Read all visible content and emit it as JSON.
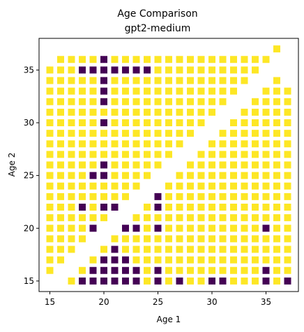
{
  "chart_data": {
    "type": "scatter",
    "title": "Age Comparison",
    "subtitle": "gpt2-medium",
    "xlabel": "Age 1",
    "ylabel": "Age 2",
    "xlim": [
      14.0,
      38.0
    ],
    "ylim": [
      14.0,
      38.0
    ],
    "x_ticks": [
      15,
      20,
      25,
      30,
      35
    ],
    "y_ticks": [
      15,
      20,
      25,
      30,
      35
    ],
    "grid": false,
    "legend": "none",
    "marker": "square",
    "colors": {
      "yes": "#fde725",
      "no": "#440154"
    },
    "grid_range": {
      "min": 15,
      "max": 37
    },
    "missing_points": [
      [
        15,
        15
      ],
      [
        16,
        16
      ],
      [
        17,
        17
      ],
      [
        18,
        18
      ],
      [
        19,
        19
      ],
      [
        20,
        20
      ],
      [
        21,
        21
      ],
      [
        22,
        22
      ],
      [
        23,
        23
      ],
      [
        24,
        24
      ],
      [
        25,
        25
      ],
      [
        26,
        26
      ],
      [
        27,
        27
      ],
      [
        28,
        28
      ],
      [
        29,
        29
      ],
      [
        30,
        30
      ],
      [
        31,
        31
      ],
      [
        32,
        32
      ],
      [
        33,
        33
      ],
      [
        34,
        34
      ],
      [
        35,
        35
      ],
      [
        36,
        36
      ],
      [
        37,
        37
      ],
      [
        16,
        15
      ],
      [
        17,
        16
      ],
      [
        18,
        17
      ],
      [
        19,
        18
      ],
      [
        20,
        19
      ],
      [
        21,
        20
      ],
      [
        22,
        21
      ],
      [
        23,
        22
      ],
      [
        24,
        23
      ],
      [
        25,
        24
      ],
      [
        26,
        25
      ],
      [
        27,
        26
      ],
      [
        28,
        27
      ],
      [
        29,
        28
      ],
      [
        30,
        29
      ],
      [
        31,
        30
      ],
      [
        32,
        31
      ],
      [
        33,
        32
      ],
      [
        34,
        33
      ],
      [
        35,
        34
      ],
      [
        36,
        35
      ],
      [
        15,
        36
      ],
      [
        15,
        37
      ],
      [
        16,
        37
      ],
      [
        17,
        37
      ],
      [
        18,
        37
      ],
      [
        19,
        37
      ],
      [
        20,
        37
      ],
      [
        21,
        37
      ],
      [
        22,
        37
      ],
      [
        23,
        37
      ],
      [
        24,
        37
      ],
      [
        25,
        37
      ],
      [
        26,
        37
      ],
      [
        27,
        37
      ],
      [
        28,
        37
      ],
      [
        29,
        37
      ],
      [
        30,
        37
      ],
      [
        31,
        37
      ],
      [
        32,
        37
      ],
      [
        33,
        37
      ],
      [
        34,
        37
      ],
      [
        35,
        37
      ],
      [
        37,
        35
      ],
      [
        37,
        36
      ],
      [
        36,
        36
      ],
      [
        37,
        34
      ]
    ],
    "dark_points": [
      [
        20,
        36
      ],
      [
        18,
        35
      ],
      [
        19,
        35
      ],
      [
        20,
        35
      ],
      [
        21,
        35
      ],
      [
        22,
        35
      ],
      [
        23,
        35
      ],
      [
        24,
        35
      ],
      [
        20,
        34
      ],
      [
        20,
        33
      ],
      [
        20,
        32
      ],
      [
        20,
        30
      ],
      [
        20,
        26
      ],
      [
        19,
        25
      ],
      [
        20,
        25
      ],
      [
        25,
        23
      ],
      [
        18,
        22
      ],
      [
        20,
        22
      ],
      [
        21,
        22
      ],
      [
        25,
        22
      ],
      [
        19,
        20
      ],
      [
        21,
        20
      ],
      [
        22,
        20
      ],
      [
        23,
        20
      ],
      [
        25,
        20
      ],
      [
        35,
        20
      ],
      [
        21,
        18
      ],
      [
        20,
        17
      ],
      [
        21,
        17
      ],
      [
        22,
        17
      ],
      [
        19,
        16
      ],
      [
        20,
        16
      ],
      [
        21,
        16
      ],
      [
        22,
        16
      ],
      [
        23,
        16
      ],
      [
        25,
        16
      ],
      [
        35,
        16
      ],
      [
        18,
        15
      ],
      [
        19,
        15
      ],
      [
        20,
        15
      ],
      [
        21,
        15
      ],
      [
        22,
        15
      ],
      [
        23,
        15
      ],
      [
        25,
        15
      ],
      [
        27,
        15
      ],
      [
        30,
        15
      ],
      [
        31,
        15
      ],
      [
        35,
        15
      ],
      [
        37,
        15
      ]
    ]
  }
}
